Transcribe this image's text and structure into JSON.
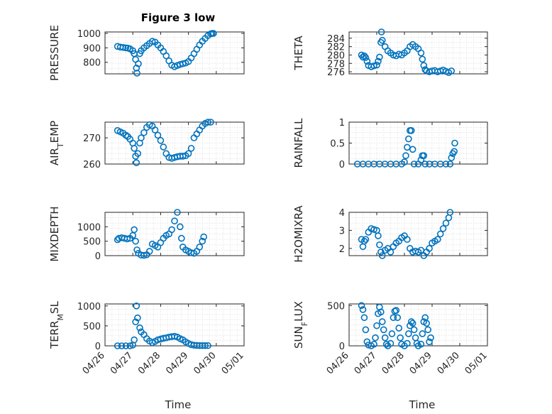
{
  "figure": {
    "title": "Figure 3 low",
    "xlabel": "Time",
    "x_ticks": [
      "04/26",
      "04/27",
      "04/28",
      "04/29",
      "04/30",
      "05/01"
    ],
    "marker_color": "#0072bd"
  },
  "chart_data": [
    {
      "type": "scatter",
      "ylabel": "PRESSURE",
      "ylim": [
        720,
        1010
      ],
      "yticks": [
        800,
        900,
        1000
      ],
      "xlim": [
        0,
        5
      ],
      "grid": true,
      "points": [
        [
          0.45,
          910
        ],
        [
          0.55,
          905
        ],
        [
          0.65,
          903
        ],
        [
          0.75,
          900
        ],
        [
          0.82,
          898
        ],
        [
          0.9,
          893
        ],
        [
          1.0,
          880
        ],
        [
          1.05,
          860
        ],
        [
          1.1,
          820
        ],
        [
          1.13,
          760
        ],
        [
          1.15,
          725
        ],
        [
          1.2,
          790
        ],
        [
          1.25,
          860
        ],
        [
          1.3,
          880
        ],
        [
          1.4,
          900
        ],
        [
          1.5,
          915
        ],
        [
          1.6,
          930
        ],
        [
          1.7,
          945
        ],
        [
          1.8,
          940
        ],
        [
          1.9,
          920
        ],
        [
          2.0,
          900
        ],
        [
          2.1,
          875
        ],
        [
          2.2,
          845
        ],
        [
          2.3,
          810
        ],
        [
          2.4,
          780
        ],
        [
          2.5,
          770
        ],
        [
          2.6,
          778
        ],
        [
          2.7,
          785
        ],
        [
          2.8,
          790
        ],
        [
          2.9,
          795
        ],
        [
          3.0,
          805
        ],
        [
          3.1,
          830
        ],
        [
          3.2,
          860
        ],
        [
          3.3,
          890
        ],
        [
          3.4,
          920
        ],
        [
          3.5,
          945
        ],
        [
          3.6,
          965
        ],
        [
          3.7,
          985
        ],
        [
          3.8,
          997
        ],
        [
          3.85,
          1000
        ],
        [
          3.9,
          1000
        ]
      ]
    },
    {
      "type": "scatter",
      "ylabel": "THETA",
      "ylim": [
        275.5,
        285.5
      ],
      "yticks": [
        276,
        278,
        280,
        282,
        284
      ],
      "xlim": [
        0,
        5
      ],
      "grid": true,
      "points": [
        [
          0.45,
          280
        ],
        [
          0.5,
          279.5
        ],
        [
          0.55,
          279.8
        ],
        [
          0.6,
          279.4
        ],
        [
          0.65,
          278.5
        ],
        [
          0.7,
          277.5
        ],
        [
          0.8,
          277.2
        ],
        [
          0.9,
          277.4
        ],
        [
          1.0,
          277.6
        ],
        [
          1.05,
          278.5
        ],
        [
          1.1,
          279.5
        ],
        [
          1.15,
          283
        ],
        [
          1.17,
          285.5
        ],
        [
          1.2,
          283.5
        ],
        [
          1.3,
          282
        ],
        [
          1.4,
          281
        ],
        [
          1.5,
          280.5
        ],
        [
          1.6,
          280
        ],
        [
          1.7,
          279.8
        ],
        [
          1.8,
          280.2
        ],
        [
          1.9,
          280
        ],
        [
          2.0,
          280.5
        ],
        [
          2.1,
          281
        ],
        [
          2.2,
          282
        ],
        [
          2.3,
          282.5
        ],
        [
          2.4,
          282
        ],
        [
          2.5,
          281.5
        ],
        [
          2.6,
          280.5
        ],
        [
          2.65,
          279
        ],
        [
          2.7,
          277.5
        ],
        [
          2.75,
          276.5
        ],
        [
          2.8,
          276.2
        ],
        [
          2.9,
          276
        ],
        [
          3.0,
          276.2
        ],
        [
          3.1,
          276.3
        ],
        [
          3.2,
          276
        ],
        [
          3.3,
          276.2
        ],
        [
          3.4,
          276.4
        ],
        [
          3.5,
          276.1
        ],
        [
          3.6,
          275.8
        ],
        [
          3.7,
          276.2
        ]
      ]
    },
    {
      "type": "scatter",
      "ylabel": "AIR_TEMP",
      "ylim": [
        260,
        276
      ],
      "yticks": [
        260,
        270
      ],
      "xlim": [
        0,
        5
      ],
      "grid": true,
      "points": [
        [
          0.45,
          272.8
        ],
        [
          0.55,
          272.3
        ],
        [
          0.65,
          271.8
        ],
        [
          0.75,
          271
        ],
        [
          0.82,
          270.5
        ],
        [
          0.9,
          269.5
        ],
        [
          1.0,
          268
        ],
        [
          1.05,
          266
        ],
        [
          1.1,
          263
        ],
        [
          1.13,
          260.5
        ],
        [
          1.18,
          264
        ],
        [
          1.25,
          268
        ],
        [
          1.3,
          270
        ],
        [
          1.4,
          272
        ],
        [
          1.5,
          274
        ],
        [
          1.6,
          275
        ],
        [
          1.7,
          274.5
        ],
        [
          1.8,
          273
        ],
        [
          1.9,
          271
        ],
        [
          2.0,
          269
        ],
        [
          2.1,
          266.5
        ],
        [
          2.2,
          264
        ],
        [
          2.3,
          262.5
        ],
        [
          2.4,
          262.2
        ],
        [
          2.5,
          262.5
        ],
        [
          2.6,
          262.8
        ],
        [
          2.7,
          263
        ],
        [
          2.8,
          263
        ],
        [
          2.9,
          263.2
        ],
        [
          3.0,
          264
        ],
        [
          3.1,
          266
        ],
        [
          3.2,
          270
        ],
        [
          3.3,
          271.5
        ],
        [
          3.4,
          273
        ],
        [
          3.5,
          274.5
        ],
        [
          3.6,
          275.5
        ],
        [
          3.7,
          276
        ],
        [
          3.8,
          276
        ]
      ]
    },
    {
      "type": "scatter",
      "ylabel": "RAINFALL",
      "ylim": [
        0,
        1
      ],
      "yticks": [
        0,
        0.5,
        1
      ],
      "xlim": [
        0,
        5
      ],
      "grid": true,
      "points": [
        [
          0.3,
          0
        ],
        [
          0.5,
          0
        ],
        [
          0.7,
          0
        ],
        [
          0.9,
          0
        ],
        [
          1.1,
          0
        ],
        [
          1.3,
          0
        ],
        [
          1.5,
          0
        ],
        [
          1.7,
          0
        ],
        [
          1.9,
          0
        ],
        [
          2.0,
          0.05
        ],
        [
          2.05,
          0.2
        ],
        [
          2.1,
          0.4
        ],
        [
          2.15,
          0.6
        ],
        [
          2.2,
          0.8
        ],
        [
          2.25,
          0.8
        ],
        [
          2.3,
          0.35
        ],
        [
          2.35,
          0
        ],
        [
          2.5,
          0
        ],
        [
          2.6,
          0.1
        ],
        [
          2.65,
          0.2
        ],
        [
          2.7,
          0.2
        ],
        [
          2.75,
          0
        ],
        [
          2.9,
          0
        ],
        [
          3.1,
          0
        ],
        [
          3.3,
          0
        ],
        [
          3.5,
          0
        ],
        [
          3.65,
          0
        ],
        [
          3.7,
          0.15
        ],
        [
          3.75,
          0.25
        ],
        [
          3.8,
          0.3
        ],
        [
          3.82,
          0.5
        ]
      ]
    },
    {
      "type": "scatter",
      "ylabel": "MIXDEPTH",
      "ylim": [
        0,
        1500
      ],
      "yticks": [
        0,
        500,
        1000
      ],
      "xlim": [
        0,
        5
      ],
      "grid": true,
      "points": [
        [
          0.45,
          550
        ],
        [
          0.5,
          600
        ],
        [
          0.6,
          620
        ],
        [
          0.7,
          600
        ],
        [
          0.8,
          580
        ],
        [
          0.9,
          600
        ],
        [
          1.0,
          700
        ],
        [
          1.05,
          900
        ],
        [
          1.1,
          500
        ],
        [
          1.15,
          200
        ],
        [
          1.2,
          80
        ],
        [
          1.3,
          20
        ],
        [
          1.4,
          10
        ],
        [
          1.5,
          30
        ],
        [
          1.6,
          150
        ],
        [
          1.7,
          400
        ],
        [
          1.8,
          350
        ],
        [
          1.9,
          300
        ],
        [
          2.0,
          450
        ],
        [
          2.1,
          600
        ],
        [
          2.2,
          700
        ],
        [
          2.3,
          750
        ],
        [
          2.4,
          900
        ],
        [
          2.5,
          1200
        ],
        [
          2.6,
          1500
        ],
        [
          2.7,
          1000
        ],
        [
          2.75,
          600
        ],
        [
          2.8,
          300
        ],
        [
          2.9,
          200
        ],
        [
          3.0,
          150
        ],
        [
          3.1,
          100
        ],
        [
          3.2,
          80
        ],
        [
          3.3,
          150
        ],
        [
          3.4,
          300
        ],
        [
          3.5,
          500
        ],
        [
          3.55,
          650
        ]
      ]
    },
    {
      "type": "scatter",
      "ylabel": "H2OMIXRA",
      "ylim": [
        1.6,
        4
      ],
      "yticks": [
        2,
        3,
        4
      ],
      "xlim": [
        0,
        5
      ],
      "grid": true,
      "points": [
        [
          0.45,
          2.5
        ],
        [
          0.5,
          2.1
        ],
        [
          0.55,
          2.4
        ],
        [
          0.6,
          2.5
        ],
        [
          0.7,
          2.9
        ],
        [
          0.8,
          3.1
        ],
        [
          0.9,
          3.05
        ],
        [
          1.0,
          3
        ],
        [
          1.05,
          2.7
        ],
        [
          1.1,
          2.2
        ],
        [
          1.15,
          1.8
        ],
        [
          1.2,
          1.6
        ],
        [
          1.3,
          1.9
        ],
        [
          1.4,
          2
        ],
        [
          1.5,
          1.8
        ],
        [
          1.6,
          2.1
        ],
        [
          1.7,
          2.3
        ],
        [
          1.8,
          2.4
        ],
        [
          1.9,
          2.6
        ],
        [
          2.0,
          2.7
        ],
        [
          2.1,
          2.5
        ],
        [
          2.2,
          2
        ],
        [
          2.3,
          1.8
        ],
        [
          2.4,
          1.85
        ],
        [
          2.5,
          1.8
        ],
        [
          2.6,
          1.9
        ],
        [
          2.7,
          1.6
        ],
        [
          2.8,
          1.8
        ],
        [
          2.9,
          2
        ],
        [
          3.0,
          2.3
        ],
        [
          3.1,
          2.4
        ],
        [
          3.2,
          2.5
        ],
        [
          3.3,
          2.8
        ],
        [
          3.4,
          3.1
        ],
        [
          3.5,
          3.4
        ],
        [
          3.6,
          3.7
        ],
        [
          3.65,
          4
        ]
      ]
    },
    {
      "type": "scatter",
      "ylabel": "TERR_MSL",
      "ylim": [
        0,
        1050
      ],
      "yticks": [
        0,
        500,
        1000
      ],
      "xlim": [
        0,
        5
      ],
      "grid": true,
      "points": [
        [
          0.45,
          0
        ],
        [
          0.6,
          0
        ],
        [
          0.75,
          0
        ],
        [
          0.9,
          0
        ],
        [
          1.0,
          20
        ],
        [
          1.05,
          150
        ],
        [
          1.1,
          600
        ],
        [
          1.13,
          1000
        ],
        [
          1.17,
          700
        ],
        [
          1.25,
          450
        ],
        [
          1.3,
          350
        ],
        [
          1.4,
          280
        ],
        [
          1.5,
          180
        ],
        [
          1.6,
          120
        ],
        [
          1.7,
          80
        ],
        [
          1.8,
          110
        ],
        [
          1.9,
          150
        ],
        [
          2.0,
          170
        ],
        [
          2.1,
          190
        ],
        [
          2.2,
          200
        ],
        [
          2.3,
          220
        ],
        [
          2.4,
          230
        ],
        [
          2.5,
          240
        ],
        [
          2.6,
          220
        ],
        [
          2.7,
          180
        ],
        [
          2.8,
          150
        ],
        [
          2.9,
          100
        ],
        [
          3.0,
          60
        ],
        [
          3.1,
          30
        ],
        [
          3.2,
          15
        ],
        [
          3.3,
          10
        ],
        [
          3.4,
          5
        ],
        [
          3.5,
          5
        ],
        [
          3.6,
          5
        ],
        [
          3.7,
          5
        ]
      ]
    },
    {
      "type": "scatter",
      "ylabel": "SUN_FLUX",
      "ylim": [
        0,
        520
      ],
      "yticks": [
        0,
        500
      ],
      "xlim": [
        0,
        5
      ],
      "grid": true,
      "points": [
        [
          0.45,
          500
        ],
        [
          0.5,
          450
        ],
        [
          0.55,
          350
        ],
        [
          0.6,
          200
        ],
        [
          0.65,
          50
        ],
        [
          0.7,
          10
        ],
        [
          0.8,
          0
        ],
        [
          0.9,
          20
        ],
        [
          0.95,
          100
        ],
        [
          1.0,
          250
        ],
        [
          1.05,
          400
        ],
        [
          1.1,
          480
        ],
        [
          1.15,
          420
        ],
        [
          1.2,
          300
        ],
        [
          1.25,
          200
        ],
        [
          1.3,
          100
        ],
        [
          1.35,
          20
        ],
        [
          1.4,
          0
        ],
        [
          1.5,
          30
        ],
        [
          1.55,
          150
        ],
        [
          1.6,
          350
        ],
        [
          1.65,
          430
        ],
        [
          1.7,
          440
        ],
        [
          1.75,
          350
        ],
        [
          1.8,
          220
        ],
        [
          1.85,
          100
        ],
        [
          1.9,
          20
        ],
        [
          2.0,
          0
        ],
        [
          2.1,
          30
        ],
        [
          2.15,
          150
        ],
        [
          2.2,
          250
        ],
        [
          2.25,
          300
        ],
        [
          2.3,
          280
        ],
        [
          2.35,
          200
        ],
        [
          2.4,
          100
        ],
        [
          2.45,
          30
        ],
        [
          2.5,
          0
        ],
        [
          2.6,
          20
        ],
        [
          2.65,
          150
        ],
        [
          2.7,
          300
        ],
        [
          2.75,
          350
        ],
        [
          2.8,
          280
        ],
        [
          2.85,
          200
        ],
        [
          2.9,
          50
        ],
        [
          2.95,
          100
        ]
      ]
    }
  ]
}
